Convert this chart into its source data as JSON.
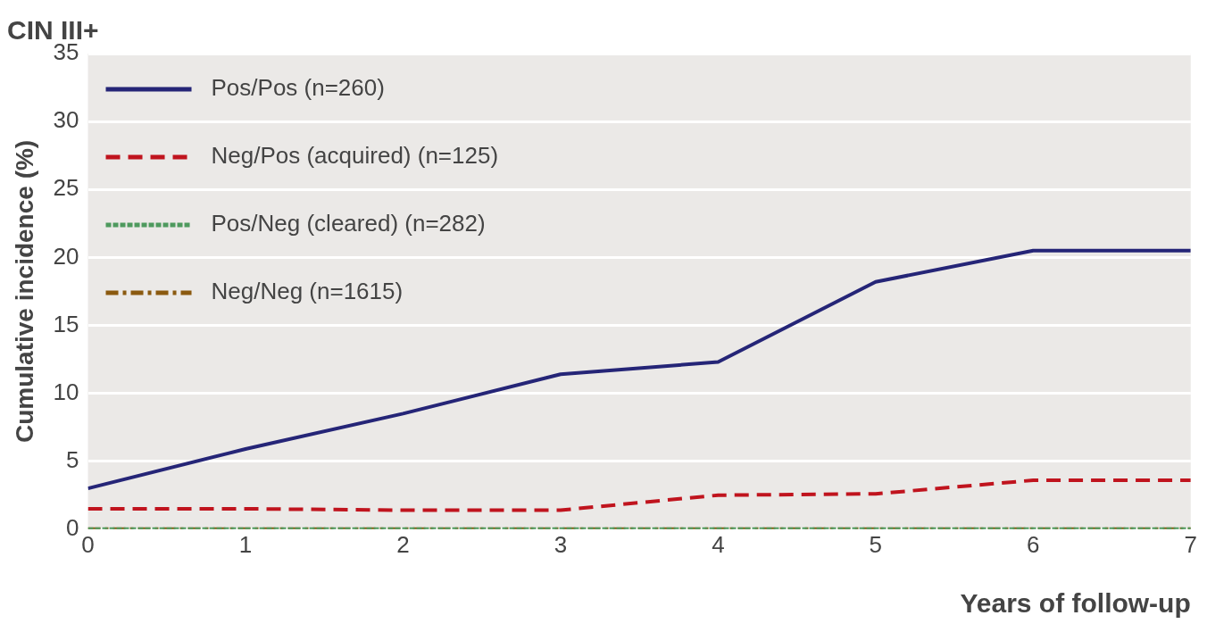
{
  "chart_data": {
    "type": "line",
    "title": "CIN III+",
    "xlabel": "Years of follow-up",
    "ylabel": "Cumulative incidence (%)",
    "x": [
      0,
      1,
      2,
      3,
      4,
      5,
      6,
      7
    ],
    "xlim": [
      0,
      7
    ],
    "xticks": [
      0,
      1,
      2,
      3,
      4,
      5,
      6,
      7
    ],
    "ylim": [
      0,
      35
    ],
    "yticks": [
      0,
      5,
      10,
      15,
      20,
      25,
      30,
      35
    ],
    "grid": "y",
    "legend": "top left",
    "marker": "none",
    "series": [
      {
        "name": "Pos/Pos (n=260)",
        "color": "#252577",
        "line_style": "solid",
        "values": [
          3.0,
          5.9,
          8.5,
          11.4,
          12.3,
          18.2,
          20.5,
          20.5
        ]
      },
      {
        "name": "Neg/Pos (acquired) (n=125)",
        "color": "#c0141e",
        "line_style": "dashed",
        "values": [
          1.5,
          1.5,
          1.4,
          1.4,
          2.5,
          2.6,
          3.6,
          3.6
        ]
      },
      {
        "name": "Pos/Neg (cleared) (n=282)",
        "color": "#4e9a5e",
        "line_style": "dotted",
        "values": [
          0,
          0,
          0,
          0,
          0,
          0,
          0,
          0
        ]
      },
      {
        "name": "Neg/Neg (n=1615)",
        "color": "#8b5a10",
        "line_style": "dashdot",
        "values": [
          0,
          0,
          0,
          0,
          0,
          0,
          0,
          0
        ]
      }
    ]
  }
}
